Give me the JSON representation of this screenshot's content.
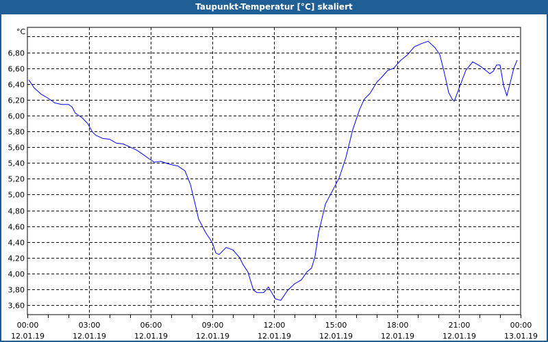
{
  "window": {
    "title": "Taupunkt-Temperatur [°C] skaliert"
  },
  "chart_data": {
    "type": "line",
    "title": "Taupunkt-Temperatur [°C] skaliert",
    "ylabel": "°C",
    "xlabel": "",
    "ylim": [
      3.48,
      7.116
    ],
    "xlim_hours": [
      0,
      24
    ],
    "grid": true,
    "line_color": "#0000ff",
    "y_ticks": [
      {
        "value": 7.0,
        "label": ""
      },
      {
        "value": 6.8,
        "label": "6,80"
      },
      {
        "value": 6.6,
        "label": "6,60"
      },
      {
        "value": 6.4,
        "label": "6,40"
      },
      {
        "value": 6.2,
        "label": "6,20"
      },
      {
        "value": 6.0,
        "label": "6,00"
      },
      {
        "value": 5.8,
        "label": "5,80"
      },
      {
        "value": 5.6,
        "label": "5,60"
      },
      {
        "value": 5.4,
        "label": "5,40"
      },
      {
        "value": 5.2,
        "label": "5,20"
      },
      {
        "value": 5.0,
        "label": "5,00"
      },
      {
        "value": 4.8,
        "label": "4,80"
      },
      {
        "value": 4.6,
        "label": "4,60"
      },
      {
        "value": 4.4,
        "label": "4,40"
      },
      {
        "value": 4.2,
        "label": "4,20"
      },
      {
        "value": 4.0,
        "label": "4,00"
      },
      {
        "value": 3.8,
        "label": "3,80"
      },
      {
        "value": 3.6,
        "label": "3,60"
      }
    ],
    "x_ticks": [
      {
        "hour": 0,
        "time": "00:00",
        "date": "12.01.19"
      },
      {
        "hour": 3,
        "time": "03:00",
        "date": "12.01.19"
      },
      {
        "hour": 6,
        "time": "06:00",
        "date": "12.01.19"
      },
      {
        "hour": 9,
        "time": "09:00",
        "date": "12.01.19"
      },
      {
        "hour": 12,
        "time": "12:00",
        "date": "12.01.19"
      },
      {
        "hour": 15,
        "time": "15:00",
        "date": "12.01.19"
      },
      {
        "hour": 18,
        "time": "18:00",
        "date": "12.01.19"
      },
      {
        "hour": 21,
        "time": "21:00",
        "date": "12.01.19"
      },
      {
        "hour": 24,
        "time": "00:00",
        "date": "13.01.19"
      }
    ],
    "series": [
      {
        "name": "Taupunkt-Temperatur",
        "x_hours": [
          0.07,
          0.33,
          0.67,
          1,
          1.33,
          1.67,
          2,
          2.17,
          2.33,
          2.67,
          2.93,
          3.17,
          3.33,
          3.67,
          4,
          4.33,
          4.67,
          5,
          5.33,
          5.67,
          5.93,
          6.17,
          6.5,
          6.83,
          7.33,
          7.67,
          7.93,
          8.17,
          8.33,
          8.67,
          9,
          9.17,
          9.33,
          9.67,
          10,
          10.33,
          10.5,
          10.73,
          11,
          11.17,
          11.5,
          11.73,
          11.93,
          12.07,
          12.33,
          12.67,
          13,
          13.33,
          13.6,
          13.83,
          14,
          14.17,
          14.33,
          14.5,
          14.83,
          15.17,
          15.5,
          15.83,
          16.17,
          16.4,
          16.67,
          17,
          17.33,
          17.53,
          17.83,
          18.17,
          18.5,
          18.83,
          19.17,
          19.5,
          19.83,
          20.07,
          20.27,
          20.4,
          20.5,
          20.67,
          20.77,
          21,
          21.33,
          21.67,
          22,
          22.17,
          22.5,
          22.67,
          22.83,
          23,
          23.17,
          23.33,
          23.5,
          23.67,
          23.83
        ],
        "values": [
          6.45,
          6.35,
          6.27,
          6.22,
          6.16,
          6.14,
          6.14,
          6.11,
          6.03,
          5.97,
          5.9,
          5.79,
          5.75,
          5.71,
          5.7,
          5.65,
          5.64,
          5.6,
          5.56,
          5.5,
          5.45,
          5.41,
          5.42,
          5.39,
          5.36,
          5.3,
          5.13,
          4.87,
          4.69,
          4.52,
          4.39,
          4.26,
          4.24,
          4.33,
          4.3,
          4.2,
          4.11,
          4.02,
          3.79,
          3.76,
          3.76,
          3.83,
          3.74,
          3.68,
          3.66,
          3.79,
          3.87,
          3.92,
          4.02,
          4.07,
          4.22,
          4.52,
          4.69,
          4.88,
          5.04,
          5.21,
          5.47,
          5.82,
          6.08,
          6.21,
          6.28,
          6.42,
          6.51,
          6.57,
          6.6,
          6.7,
          6.77,
          6.87,
          6.91,
          6.94,
          6.86,
          6.77,
          6.56,
          6.41,
          6.29,
          6.21,
          6.18,
          6.34,
          6.57,
          6.68,
          6.63,
          6.6,
          6.53,
          6.56,
          6.64,
          6.64,
          6.38,
          6.25,
          6.42,
          6.6,
          6.7
        ]
      }
    ]
  }
}
